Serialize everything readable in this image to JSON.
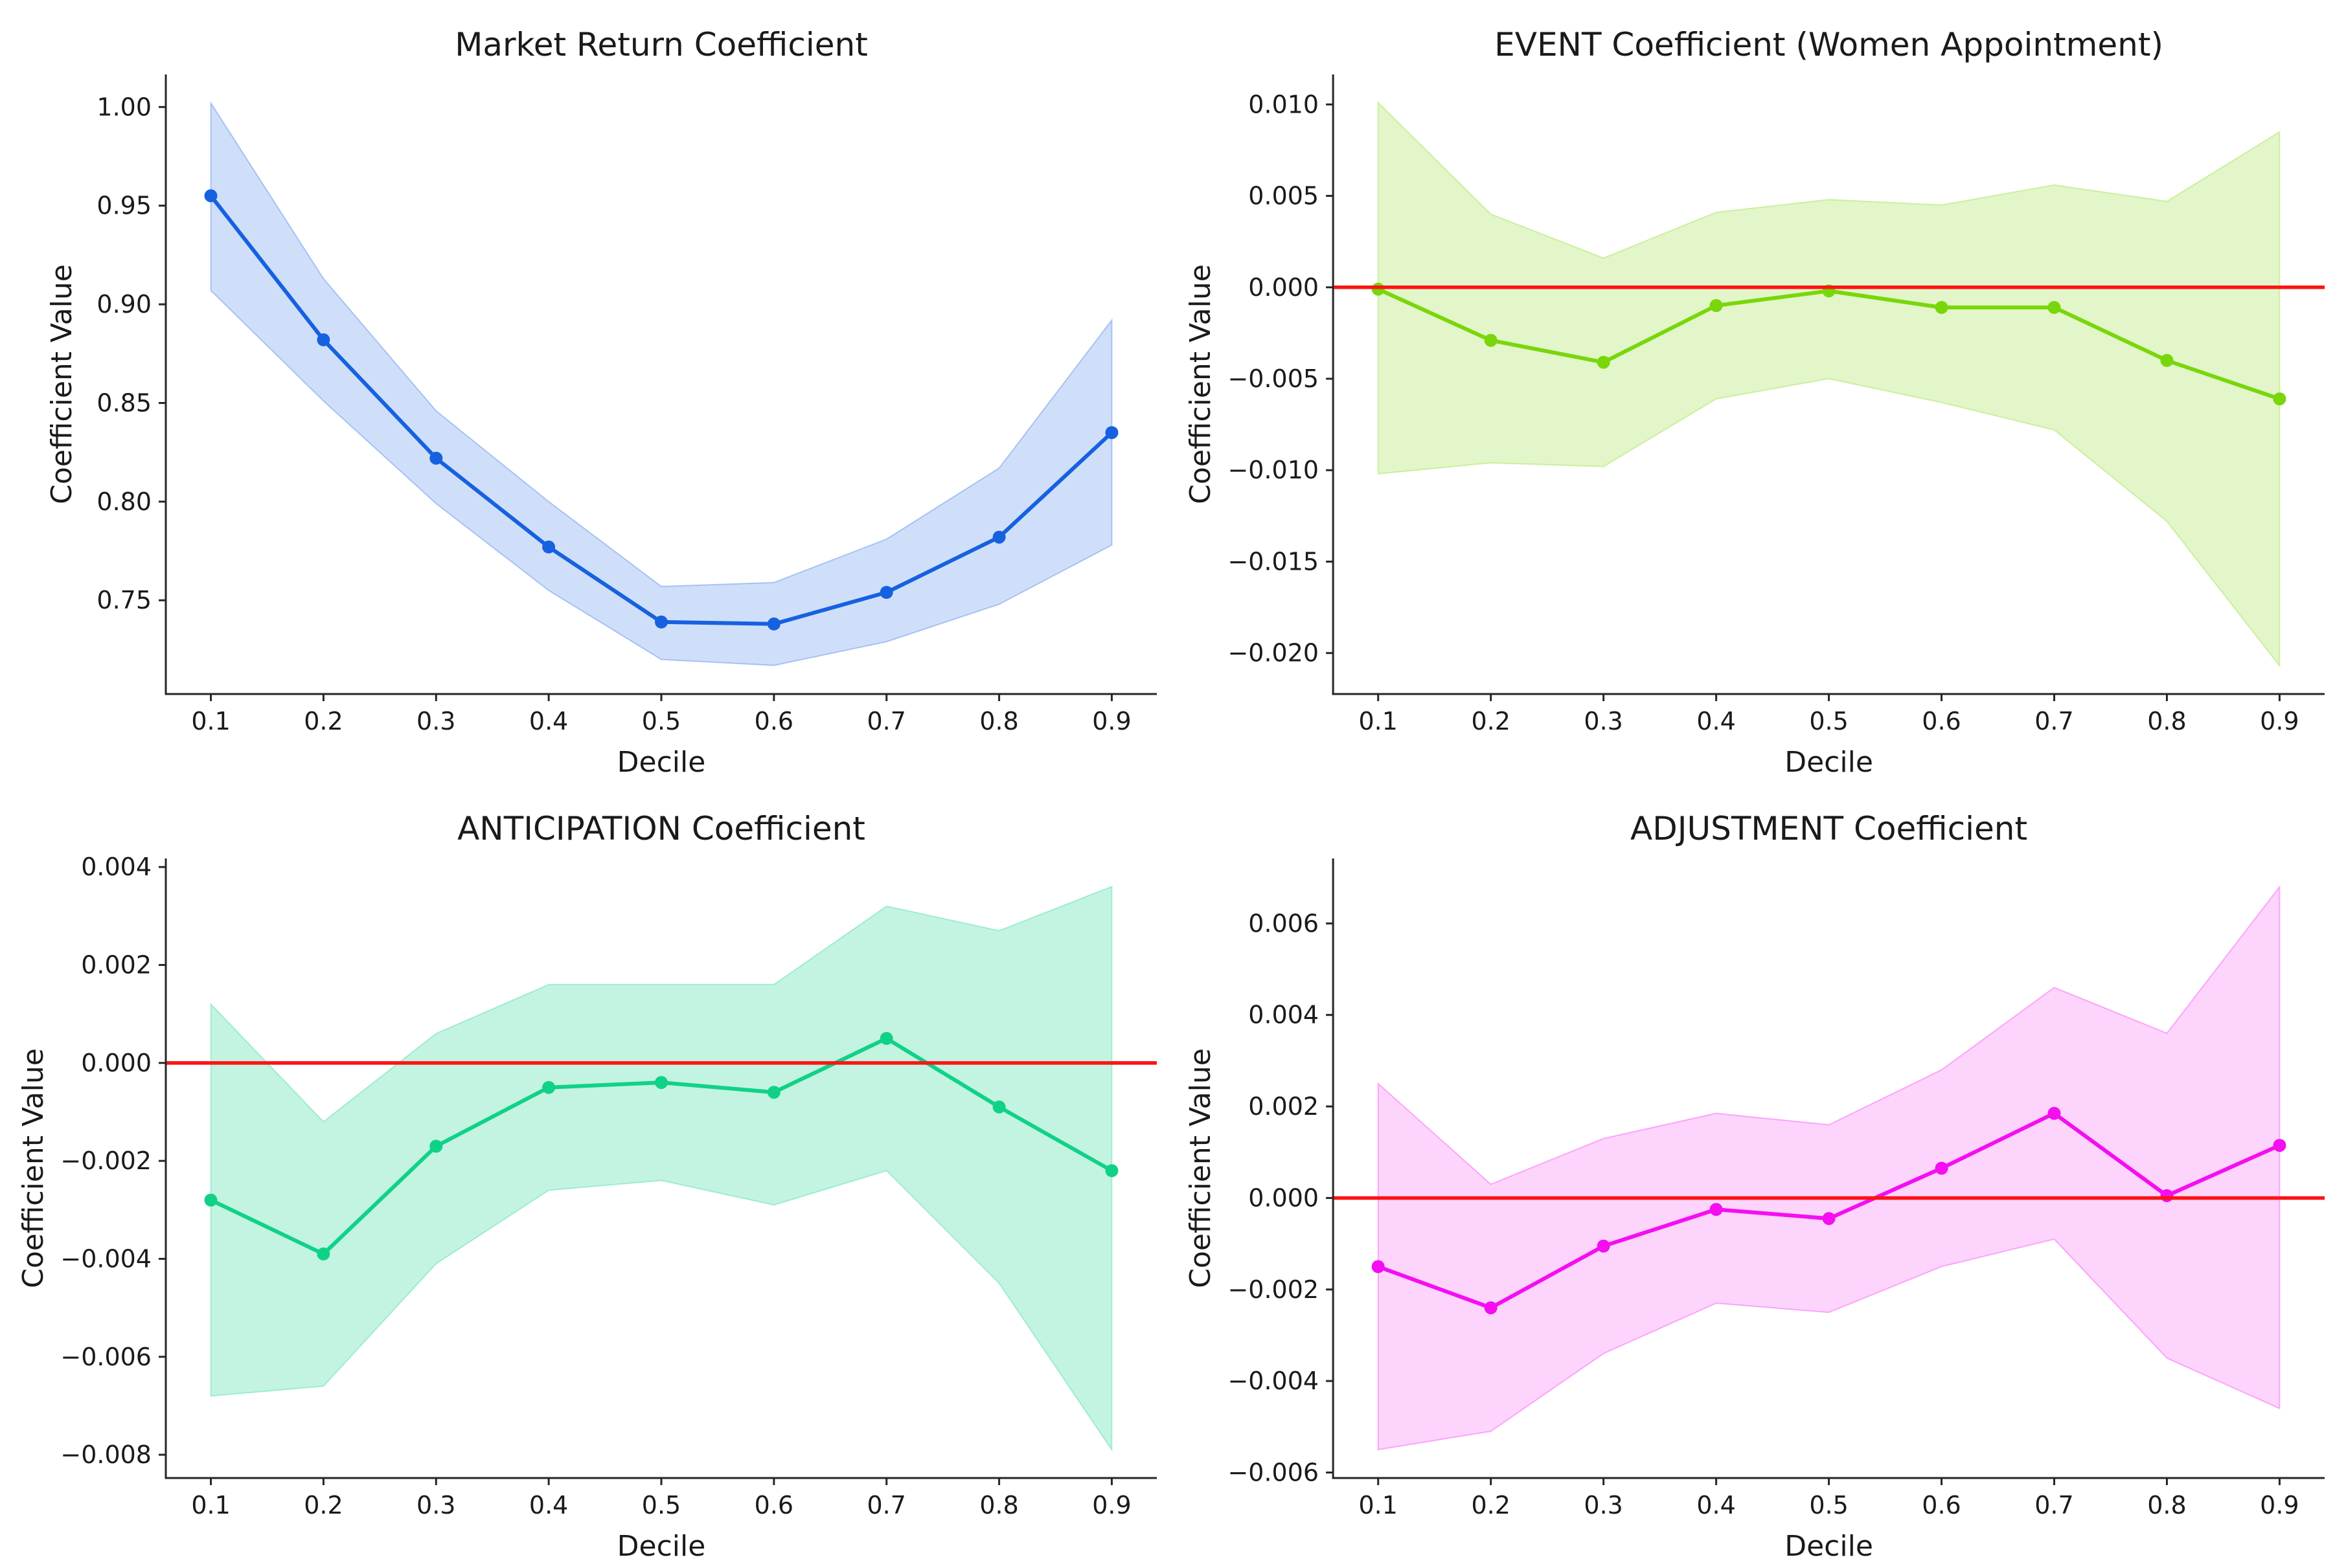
{
  "page": {
    "background": "#ffffff"
  },
  "style": {
    "axis_color": "#262626",
    "text_color": "#1a1a1a",
    "zero_line_color": "#fb1414"
  },
  "chart_data": [
    {
      "id": "market-return",
      "type": "line",
      "title": "Market Return Coefficient",
      "xlabel": "Decile",
      "ylabel": "Coefficient Value",
      "x": [
        0.1,
        0.2,
        0.3,
        0.4,
        0.5,
        0.6,
        0.7,
        0.8,
        0.9
      ],
      "xtick_labels": [
        "0.1",
        "0.2",
        "0.3",
        "0.4",
        "0.5",
        "0.6",
        "0.7",
        "0.8",
        "0.9"
      ],
      "series": [
        {
          "name": "Market return coefficient",
          "color": "#1661e0",
          "values": [
            0.955,
            0.882,
            0.822,
            0.777,
            0.739,
            0.738,
            0.754,
            0.782,
            0.835
          ]
        }
      ],
      "band": {
        "name": "confidence-interval",
        "fill_opacity": 0.2,
        "upper": [
          1.002,
          0.913,
          0.846,
          0.8,
          0.757,
          0.759,
          0.781,
          0.817,
          0.892
        ],
        "lower": [
          0.907,
          0.851,
          0.799,
          0.755,
          0.72,
          0.717,
          0.729,
          0.748,
          0.778
        ]
      },
      "zero_line": false,
      "grid": false,
      "legend": "none",
      "xlim": [
        0.06,
        0.94
      ],
      "ylim": [
        0.7025,
        1.0165
      ],
      "yticks": [
        1.0,
        0.95,
        0.9,
        0.85,
        0.8,
        0.75
      ],
      "ytick_labels": [
        "1.00",
        "0.95",
        "0.90",
        "0.85",
        "0.80",
        "0.75"
      ]
    },
    {
      "id": "event",
      "type": "line",
      "title": "EVENT Coefficient (Women Appointment)",
      "xlabel": "Decile",
      "ylabel": "Coefficient Value",
      "x": [
        0.1,
        0.2,
        0.3,
        0.4,
        0.5,
        0.6,
        0.7,
        0.8,
        0.9
      ],
      "xtick_labels": [
        "0.1",
        "0.2",
        "0.3",
        "0.4",
        "0.5",
        "0.6",
        "0.7",
        "0.8",
        "0.9"
      ],
      "series": [
        {
          "name": "EVENT coefficient",
          "color": "#79d60b",
          "values": [
            -0.0001,
            -0.0029,
            -0.0041,
            -0.001,
            -0.0002,
            -0.0011,
            -0.0011,
            -0.004,
            -0.0061
          ]
        }
      ],
      "band": {
        "name": "confidence-interval",
        "fill_opacity": 0.22,
        "upper": [
          0.0101,
          0.004,
          0.0016,
          0.0041,
          0.0048,
          0.0045,
          0.0056,
          0.0047,
          0.0085
        ],
        "lower": [
          -0.0102,
          -0.0096,
          -0.0098,
          -0.0061,
          -0.005,
          -0.0063,
          -0.0078,
          -0.0128,
          -0.0207
        ]
      },
      "zero_line": true,
      "grid": false,
      "legend": "none",
      "xlim": [
        0.06,
        0.94
      ],
      "ylim": [
        -0.02224,
        0.01164
      ],
      "yticks": [
        0.01,
        0.005,
        0.0,
        -0.005,
        -0.01,
        -0.015,
        -0.02
      ],
      "ytick_labels": [
        "0.010",
        "0.005",
        "0.000",
        "−0.005",
        "−0.010",
        "−0.015",
        "−0.020"
      ]
    },
    {
      "id": "anticipation",
      "type": "line",
      "title": "ANTICIPATION Coefficient",
      "xlabel": "Decile",
      "ylabel": "Coefficient Value",
      "x": [
        0.1,
        0.2,
        0.3,
        0.4,
        0.5,
        0.6,
        0.7,
        0.8,
        0.9
      ],
      "xtick_labels": [
        "0.1",
        "0.2",
        "0.3",
        "0.4",
        "0.5",
        "0.6",
        "0.7",
        "0.8",
        "0.9"
      ],
      "series": [
        {
          "name": "ANTICIPATION coefficient",
          "color": "#10d287",
          "values": [
            -0.0028,
            -0.0039,
            -0.0017,
            -0.0005,
            -0.0004,
            -0.0006,
            0.0005,
            -0.0009,
            -0.0022
          ]
        }
      ],
      "band": {
        "name": "confidence-interval",
        "fill_opacity": 0.25,
        "upper": [
          0.0012,
          -0.0012,
          0.0006,
          0.0016,
          0.0016,
          0.0016,
          0.0032,
          0.0027,
          0.0036
        ],
        "lower": [
          -0.0068,
          -0.0066,
          -0.0041,
          -0.0026,
          -0.0024,
          -0.0029,
          -0.0022,
          -0.0045,
          -0.0079
        ]
      },
      "zero_line": true,
      "grid": false,
      "legend": "none",
      "xlim": [
        0.06,
        0.94
      ],
      "ylim": [
        -0.008475,
        0.004175
      ],
      "yticks": [
        0.004,
        0.002,
        0.0,
        -0.002,
        -0.004,
        -0.006,
        -0.008
      ],
      "ytick_labels": [
        "0.004",
        "0.002",
        "0.000",
        "−0.002",
        "−0.004",
        "−0.006",
        "−0.008"
      ]
    },
    {
      "id": "adjustment",
      "type": "line",
      "title": "ADJUSTMENT Coefficient",
      "xlabel": "Decile",
      "ylabel": "Coefficient Value",
      "x": [
        0.1,
        0.2,
        0.3,
        0.4,
        0.5,
        0.6,
        0.7,
        0.8,
        0.9
      ],
      "xtick_labels": [
        "0.1",
        "0.2",
        "0.3",
        "0.4",
        "0.5",
        "0.6",
        "0.7",
        "0.8",
        "0.9"
      ],
      "series": [
        {
          "name": "ADJUSTMENT coefficient",
          "color": "#f40ef0",
          "values": [
            -0.0015,
            -0.0024,
            -0.00105,
            -0.00025,
            -0.00045,
            0.00065,
            0.00185,
            5e-05,
            0.00115
          ]
        }
      ],
      "band": {
        "name": "confidence-interval",
        "fill_opacity": 0.18,
        "upper": [
          0.0025,
          0.0003,
          0.0013,
          0.00185,
          0.0016,
          0.0028,
          0.0046,
          0.0036,
          0.0068
        ],
        "lower": [
          -0.0055,
          -0.0051,
          -0.0034,
          -0.0023,
          -0.0025,
          -0.0015,
          -0.0009,
          -0.0035,
          -0.0046
        ]
      },
      "zero_line": true,
      "grid": false,
      "legend": "none",
      "xlim": [
        0.06,
        0.94
      ],
      "ylim": [
        -0.00612,
        0.00742
      ],
      "yticks": [
        0.006,
        0.004,
        0.002,
        0.0,
        -0.002,
        -0.004,
        -0.006
      ],
      "ytick_labels": [
        "0.006",
        "0.004",
        "0.002",
        "0.000",
        "−0.002",
        "−0.004",
        "−0.006"
      ]
    }
  ]
}
